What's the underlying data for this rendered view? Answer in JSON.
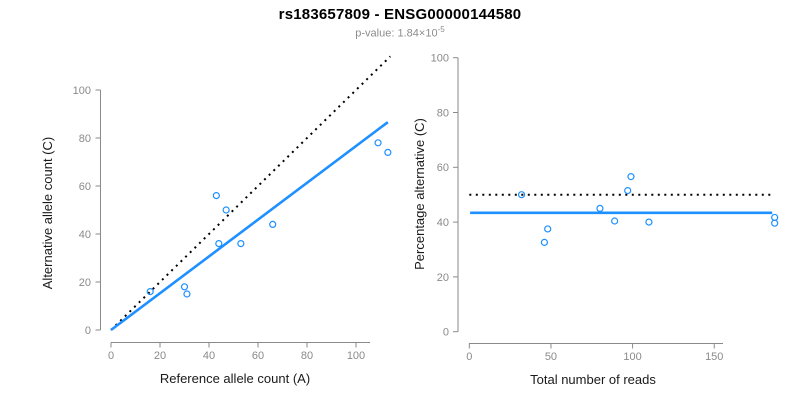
{
  "header": {
    "title": "rs183657809 - ENSG00000144580",
    "pvalue_label": "p-value: ",
    "pvalue_mantissa": "1.84",
    "pvalue_base": "×10",
    "pvalue_exponent": "-5"
  },
  "colors": {
    "accent_blue": "#1E90FF",
    "dotted_line_black": "#000000",
    "axis_gray": "#8a8a8a",
    "tick_label_gray": "#8a8a8a",
    "axis_title_color": "#1a1a1a",
    "subtitle_gray": "#8c8c8c",
    "title_black": "#000000"
  },
  "chart_data": [
    {
      "type": "scatter",
      "panel": "allele-counts",
      "title": "",
      "xlabel": "Reference allele count (A)",
      "ylabel": "Alternative allele count (C)",
      "xlim": [
        0,
        113
      ],
      "ylim": [
        0,
        114
      ],
      "xticks": [
        0,
        20,
        40,
        60,
        80,
        100
      ],
      "yticks": [
        0,
        20,
        40,
        60,
        80,
        100
      ],
      "grid": false,
      "legend": "none",
      "marker": "open-circle",
      "points": [
        [
          16,
          16
        ],
        [
          30,
          18
        ],
        [
          31,
          15
        ],
        [
          43,
          56
        ],
        [
          44,
          36
        ],
        [
          47,
          50
        ],
        [
          53,
          36
        ],
        [
          66,
          44
        ],
        [
          109,
          78
        ],
        [
          113,
          74
        ]
      ],
      "lines": [
        {
          "name": "identity-line",
          "meaning": "y = x (50% expectation)",
          "style": "dotted",
          "color": "#000000",
          "x1": 0,
          "y1": 0,
          "x2": 114,
          "y2": 114
        },
        {
          "name": "regression-line",
          "meaning": "observed alt/ref ratio fit",
          "style": "solid",
          "color": "#1E90FF",
          "x1": 0,
          "y1": 0,
          "x2": 113,
          "y2": 86.6
        }
      ]
    },
    {
      "type": "scatter",
      "panel": "percentage-vs-coverage",
      "title": "",
      "xlabel": "Total number of reads",
      "ylabel": "Percentage alternative (C)",
      "xlim": [
        0,
        186
      ],
      "ylim": [
        0,
        100
      ],
      "xticks": [
        0,
        50,
        100,
        150
      ],
      "yticks": [
        0,
        20,
        40,
        60,
        80,
        100
      ],
      "grid": false,
      "legend": "none",
      "marker": "open-circle",
      "points": [
        [
          32,
          50
        ],
        [
          46,
          32.6
        ],
        [
          48,
          37.5
        ],
        [
          80,
          45
        ],
        [
          89,
          40.4
        ],
        [
          97,
          51.5
        ],
        [
          99,
          56.6
        ],
        [
          110,
          40
        ],
        [
          187,
          41.7
        ],
        [
          187,
          39.6
        ]
      ],
      "lines": [
        {
          "name": "fifty-percent-line",
          "meaning": "50% expectation",
          "style": "dotted",
          "color": "#000000",
          "x1": 0,
          "y1": 50,
          "x2": 185.5,
          "y2": 50
        },
        {
          "name": "mean-percentage-line",
          "meaning": "overall percentage alternative (43.4%)",
          "style": "solid",
          "color": "#1E90FF",
          "x1": 0.5,
          "y1": 43.4,
          "x2": 185.5,
          "y2": 43.4
        }
      ]
    }
  ]
}
